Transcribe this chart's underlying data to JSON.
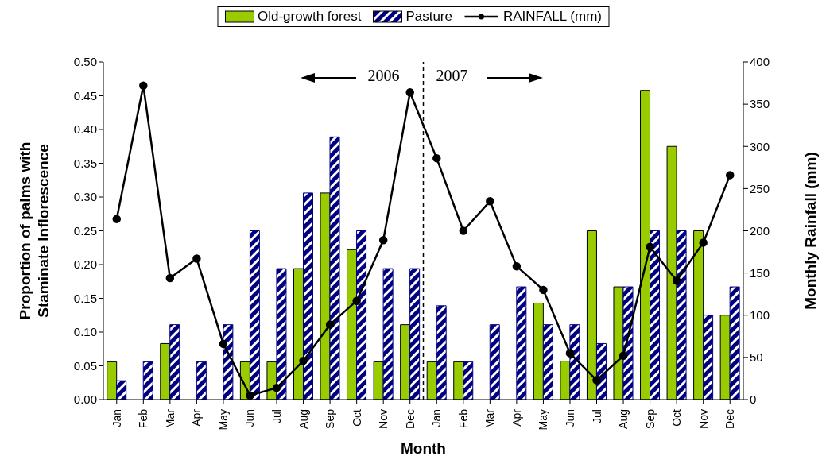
{
  "chart_data": {
    "type": "bar",
    "xlabel": "Month",
    "ylabel": "Proportion of palms with\nStaminate Inflorescence",
    "y2label": "Monthly Rainfall (mm)",
    "categories": [
      "Jan",
      "Feb",
      "Mar",
      "Apr",
      "May",
      "Jun",
      "Jul",
      "Aug",
      "Sep",
      "Oct",
      "Nov",
      "Dec",
      "Jan",
      "Feb",
      "Mar",
      "Apr",
      "May",
      "Jun",
      "Jul",
      "Aug",
      "Sep",
      "Oct",
      "Nov",
      "Dec"
    ],
    "series": [
      {
        "name": "Old-growth forest",
        "color": "#99cc00",
        "values": [
          0.056,
          0,
          0.083,
          0,
          0,
          0.056,
          0.056,
          0.194,
          0.306,
          0.222,
          0.056,
          0.111,
          0.056,
          0.056,
          0,
          0,
          0.143,
          0.057,
          0.25,
          0.167,
          0.458,
          0.375,
          0.25,
          0.125
        ]
      },
      {
        "name": "Pasture",
        "color": "#000080",
        "values": [
          0.028,
          0.056,
          0.111,
          0.056,
          0.111,
          0.25,
          0.194,
          0.306,
          0.389,
          0.25,
          0.194,
          0.194,
          0.139,
          0.056,
          0.111,
          0.167,
          0.111,
          0.111,
          0.083,
          0.167,
          0.25,
          0.25,
          0.125,
          0.167
        ]
      },
      {
        "name": "RAINFALL (mm)",
        "type": "line",
        "axis": "y2",
        "color": "#000000",
        "marker": "circle",
        "values": [
          214,
          372,
          144,
          167,
          66,
          5,
          14,
          46,
          89,
          117,
          189,
          364,
          286,
          200,
          235,
          158,
          130,
          55,
          23,
          52,
          181,
          141,
          186,
          266
        ]
      }
    ],
    "ylim": [
      0,
      0.5
    ],
    "yticks": [
      {
        "value": 0,
        "label": "0.00"
      },
      {
        "value": 0.05,
        "label": "0.05"
      },
      {
        "value": 0.1,
        "label": "0.10"
      },
      {
        "value": 0.15,
        "label": "0.15"
      },
      {
        "value": 0.2,
        "label": "0.20"
      },
      {
        "value": 0.25,
        "label": "0.25"
      },
      {
        "value": 0.3,
        "label": "0.30"
      },
      {
        "value": 0.35,
        "label": "0.35"
      },
      {
        "value": 0.4,
        "label": "0.40"
      },
      {
        "value": 0.45,
        "label": "0.45"
      },
      {
        "value": 0.5,
        "label": "0.50"
      }
    ],
    "y2lim": [
      0,
      400
    ],
    "y2ticks": [
      0,
      50,
      100,
      150,
      200,
      250,
      300,
      350,
      400
    ],
    "annotations": [
      "2006",
      "2007"
    ],
    "legend": "top"
  }
}
